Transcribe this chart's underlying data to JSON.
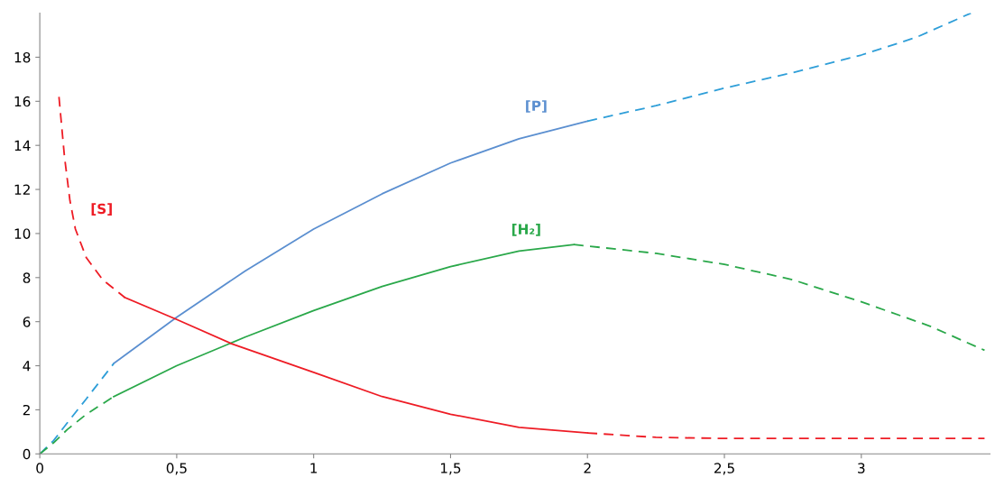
{
  "chart_data": {
    "type": "line",
    "xlim": [
      0,
      3.47
    ],
    "ylim": [
      0,
      20
    ],
    "xticks": [
      0,
      {
        "value": 0.5,
        "label": "0,5"
      },
      1,
      {
        "value": 1.5,
        "label": "1,5"
      },
      2,
      {
        "value": 2.5,
        "label": "2,5"
      },
      3
    ],
    "yticks": [
      0,
      2,
      4,
      6,
      8,
      10,
      12,
      14,
      16,
      18
    ],
    "grid": false,
    "legend": false,
    "series": [
      {
        "name": "[P]",
        "color": "#5b8fd0",
        "line_style": "solid",
        "x": [
          0.27,
          0.5,
          0.75,
          1,
          1.25,
          1.5,
          1.75,
          2
        ],
        "values": [
          4.1,
          6.2,
          8.3,
          10.2,
          11.8,
          13.2,
          14.3,
          15.1
        ]
      },
      {
        "name": "[H₂]",
        "color": "#2aa84a",
        "line_style": "solid",
        "x": [
          0.27,
          0.5,
          0.75,
          1,
          1.25,
          1.5,
          1.75,
          1.95
        ],
        "values": [
          2.6,
          4.0,
          5.3,
          6.5,
          7.6,
          8.5,
          9.2,
          9.5
        ]
      },
      {
        "color": "#ee1c25",
        "line_style": "solid",
        "x": [
          0.31,
          0.5,
          0.7,
          1,
          1.25,
          1.5,
          1.75,
          2
        ],
        "values": [
          7.1,
          6.1,
          5.0,
          3.7,
          2.6,
          1.8,
          1.2,
          0.95
        ]
      },
      {
        "color": "#2e9ed8",
        "line_style": "dashed",
        "x": [
          0,
          0.05,
          0.1,
          0.17,
          0.27
        ],
        "values": [
          0,
          0.6,
          1.4,
          2.5,
          4.1
        ]
      },
      {
        "color": "#2e9ed8",
        "line_style": "dashed",
        "x": [
          2,
          2.25,
          2.5,
          2.75,
          3,
          3.2,
          3.4
        ],
        "values": [
          15.1,
          15.8,
          16.6,
          17.3,
          18.1,
          18.9,
          20.0
        ]
      },
      {
        "color": "#2aa84a",
        "line_style": "dashed",
        "x": [
          0,
          0.05,
          0.1,
          0.17,
          0.27
        ],
        "values": [
          0,
          0.5,
          1.1,
          1.8,
          2.6
        ]
      },
      {
        "color": "#2aa84a",
        "line_style": "dashed",
        "x": [
          1.95,
          2.25,
          2.5,
          2.75,
          3,
          3.25,
          3.45
        ],
        "values": [
          9.5,
          9.1,
          8.6,
          7.9,
          6.9,
          5.8,
          4.7
        ]
      },
      {
        "name": "[S]",
        "color": "#ee1c25",
        "line_style": "dashed",
        "x": [
          0.07,
          0.09,
          0.11,
          0.13,
          0.17,
          0.23,
          0.31
        ],
        "values": [
          16.2,
          13.5,
          11.5,
          10.2,
          8.9,
          7.9,
          7.1
        ]
      },
      {
        "color": "#ee1c25",
        "line_style": "dashed",
        "x": [
          2,
          2.25,
          2.5,
          3,
          3.45
        ],
        "values": [
          0.95,
          0.75,
          0.7,
          0.7,
          0.7
        ]
      }
    ]
  }
}
